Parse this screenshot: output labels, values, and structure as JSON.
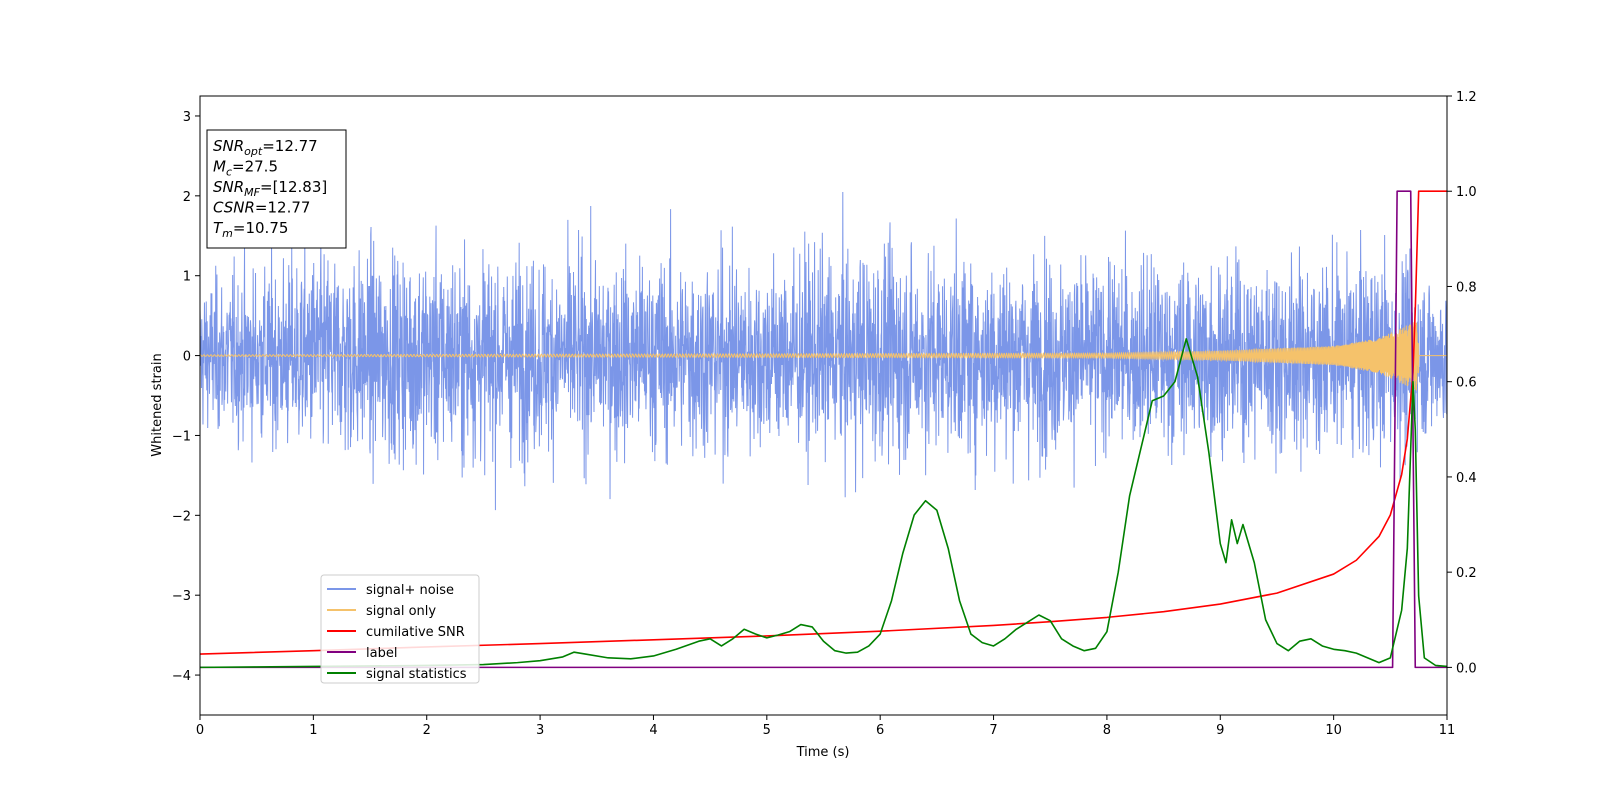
{
  "chart_data": {
    "type": "line",
    "xlabel": "Time (s)",
    "ylabel": "Whitened strain",
    "xlim": [
      0,
      11
    ],
    "ylim_left": [
      -4.5,
      3.25
    ],
    "ylim_right": [
      -0.1,
      1.2
    ],
    "x_ticks": [
      "0",
      "1",
      "2",
      "3",
      "4",
      "5",
      "6",
      "7",
      "8",
      "9",
      "10",
      "11"
    ],
    "y_left_ticks": [
      "3",
      "2",
      "1",
      "0",
      "−1",
      "−2",
      "−3",
      "−4"
    ],
    "y_left_tick_values": [
      3,
      2,
      1,
      0,
      -1,
      -2,
      -3,
      -4
    ],
    "y_right_ticks": [
      "1.2",
      "1.0",
      "0.8",
      "0.6",
      "0.4",
      "0.2",
      "0.0"
    ],
    "y_right_tick_values": [
      1.2,
      1.0,
      0.8,
      0.6,
      0.4,
      0.2,
      0.0
    ],
    "grid": false,
    "legend_position": "lower-left",
    "annotation": [
      {
        "main": "SNR",
        "sub": "opt",
        "rest": "=12.77"
      },
      {
        "main": "M",
        "sub": "c",
        "rest": "=27.5"
      },
      {
        "main": "SNR",
        "sub": "MF",
        "rest": "=[12.83]"
      },
      {
        "main": "CSNR",
        "sub": "",
        "rest": "=12.77"
      },
      {
        "main": "T",
        "sub": "m",
        "rest": "=10.75"
      }
    ],
    "series": [
      {
        "name": "signal+ noise",
        "axis": "left",
        "color": "#7b96e8",
        "kind": "noise",
        "envelope_t": [
          0,
          1,
          2,
          3,
          4,
          4.5,
          5,
          6,
          6.5,
          7,
          8,
          9,
          10,
          10.5,
          11
        ],
        "envelope_lo": [
          -1.5,
          -2.2,
          -2.3,
          -2.1,
          -2.0,
          -2.0,
          -1.9,
          -2.4,
          -2.2,
          -2.3,
          -2.0,
          -2.1,
          -2.0,
          -2.2,
          -1.8
        ],
        "envelope_hi": [
          1.6,
          2.2,
          2.2,
          2.1,
          2.2,
          2.4,
          2.2,
          2.3,
          2.0,
          2.1,
          2.0,
          2.0,
          2.0,
          2.1,
          1.4
        ]
      },
      {
        "name": "signal only",
        "axis": "left",
        "color": "#f5c26b",
        "kind": "chirp",
        "amplitude_t": [
          0,
          8,
          9,
          10,
          10.4,
          10.6,
          10.75
        ],
        "amplitude": [
          0.01,
          0.03,
          0.06,
          0.12,
          0.22,
          0.35,
          0.45
        ]
      },
      {
        "name": "cumilative SNR",
        "axis": "right",
        "color": "#ff0000",
        "x": [
          0,
          1,
          2,
          3,
          4,
          5,
          6,
          7,
          7.5,
          8,
          8.5,
          9,
          9.5,
          10,
          10.2,
          10.4,
          10.5,
          10.6,
          10.65,
          10.7,
          10.72,
          10.75,
          11
        ],
        "y": [
          0.028,
          0.035,
          0.043,
          0.05,
          0.058,
          0.066,
          0.076,
          0.088,
          0.096,
          0.105,
          0.117,
          0.133,
          0.156,
          0.196,
          0.225,
          0.275,
          0.32,
          0.405,
          0.48,
          0.62,
          0.75,
          1.0,
          1.0
        ]
      },
      {
        "name": "label",
        "axis": "right",
        "color": "#800080",
        "x": [
          0,
          10.52,
          10.56,
          10.68,
          10.72,
          11
        ],
        "y": [
          0,
          0,
          1.0,
          1.0,
          0,
          0
        ]
      },
      {
        "name": "signal statistics",
        "axis": "right",
        "color": "#008000",
        "x": [
          0,
          0.5,
          1,
          1.5,
          2,
          2.5,
          2.8,
          3.0,
          3.2,
          3.3,
          3.4,
          3.6,
          3.8,
          4.0,
          4.2,
          4.4,
          4.5,
          4.6,
          4.7,
          4.8,
          4.9,
          5.0,
          5.1,
          5.2,
          5.3,
          5.4,
          5.5,
          5.6,
          5.7,
          5.8,
          5.9,
          6.0,
          6.1,
          6.2,
          6.3,
          6.4,
          6.5,
          6.6,
          6.7,
          6.8,
          6.9,
          7.0,
          7.1,
          7.2,
          7.3,
          7.4,
          7.5,
          7.6,
          7.7,
          7.8,
          7.9,
          8.0,
          8.1,
          8.2,
          8.3,
          8.4,
          8.5,
          8.6,
          8.7,
          8.8,
          8.9,
          9.0,
          9.05,
          9.1,
          9.15,
          9.2,
          9.3,
          9.4,
          9.5,
          9.6,
          9.7,
          9.8,
          9.9,
          10.0,
          10.1,
          10.2,
          10.3,
          10.4,
          10.5,
          10.6,
          10.65,
          10.7,
          10.72,
          10.75,
          10.8,
          10.9,
          11
        ],
        "y": [
          0.0,
          0.001,
          0.002,
          0.003,
          0.004,
          0.006,
          0.01,
          0.014,
          0.022,
          0.032,
          0.028,
          0.02,
          0.018,
          0.024,
          0.038,
          0.055,
          0.06,
          0.045,
          0.06,
          0.08,
          0.07,
          0.062,
          0.068,
          0.075,
          0.09,
          0.085,
          0.055,
          0.035,
          0.03,
          0.032,
          0.045,
          0.07,
          0.14,
          0.24,
          0.32,
          0.35,
          0.33,
          0.25,
          0.14,
          0.07,
          0.052,
          0.045,
          0.06,
          0.08,
          0.095,
          0.11,
          0.098,
          0.06,
          0.045,
          0.035,
          0.04,
          0.075,
          0.2,
          0.36,
          0.46,
          0.56,
          0.57,
          0.6,
          0.69,
          0.61,
          0.45,
          0.26,
          0.22,
          0.31,
          0.26,
          0.3,
          0.22,
          0.1,
          0.05,
          0.035,
          0.055,
          0.06,
          0.045,
          0.038,
          0.035,
          0.03,
          0.02,
          0.01,
          0.02,
          0.12,
          0.25,
          0.6,
          0.5,
          0.15,
          0.02,
          0.004,
          0.002
        ]
      }
    ]
  }
}
